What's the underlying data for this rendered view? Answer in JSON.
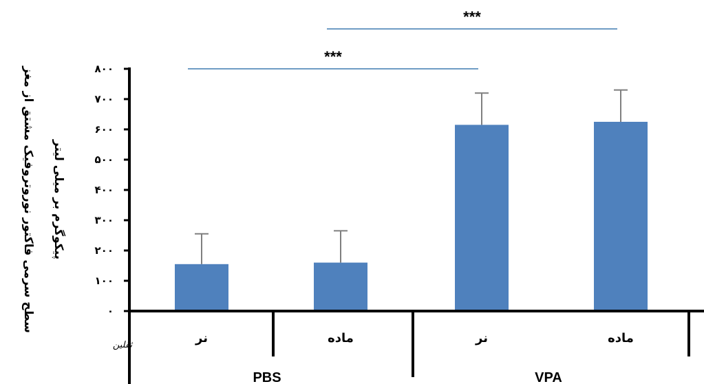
{
  "chart_data": {
    "type": "bar",
    "title": "",
    "ylabel": "سطح سرمی فاکتور نوروتروفیک مشتق از مغز",
    "ylabel_unit": "پیکوگرم بر میلی لیتر",
    "ylim": [
      0,
      800
    ],
    "yticks": [
      "۰",
      "۱۰۰",
      "۲۰۰",
      "۳۰۰",
      "۴۰۰",
      "۵۰۰",
      "۶۰۰",
      "۷۰۰",
      "۸۰۰"
    ],
    "yticks_values": [
      0,
      100,
      200,
      300,
      400,
      500,
      600,
      700,
      800
    ],
    "categories": [
      "نر",
      "ماده",
      "نر",
      "ماده"
    ],
    "groups": [
      {
        "label": "PBS",
        "members": [
          0,
          1
        ]
      },
      {
        "label": "VPA",
        "members": [
          2,
          3
        ]
      }
    ],
    "values": [
      155,
      160,
      615,
      625
    ],
    "errors": [
      100,
      105,
      105,
      105
    ],
    "bar_color": "#4f81bd",
    "error_color": "#7f7f7f",
    "significance": [
      {
        "from": 0,
        "to": 2,
        "label": "***"
      },
      {
        "from": 1,
        "to": 3,
        "label": "***"
      }
    ],
    "sig_line_color": "#6e9cc4",
    "grid": false,
    "legend": "none"
  },
  "watermark": "ثقلین"
}
